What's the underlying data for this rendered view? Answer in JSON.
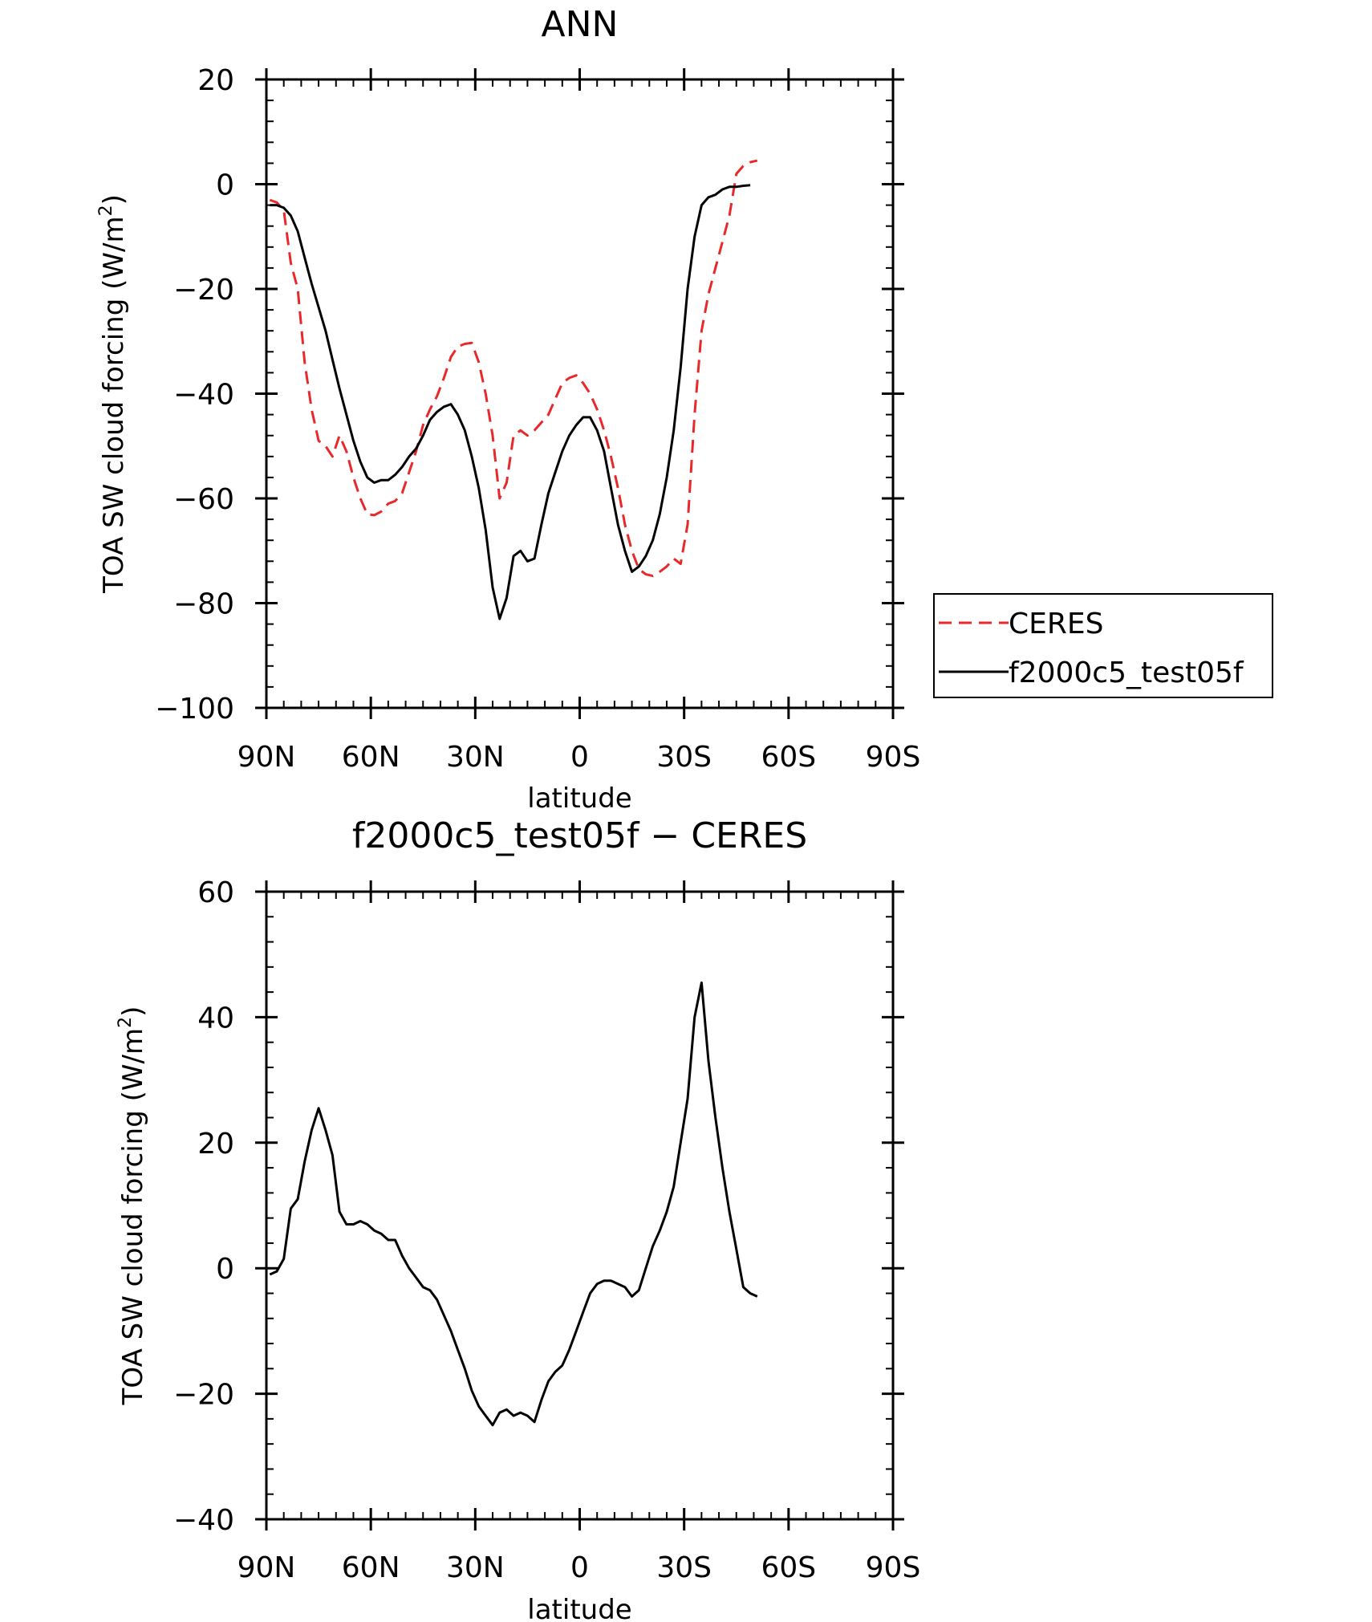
{
  "chart_data": [
    {
      "type": "line",
      "title": "ANN",
      "xlabel": "latitude",
      "ylabel": "TOA SW cloud forcing (W/m",
      "ylabel_sup": "2",
      "ylabel_close": ")",
      "xlim": [
        90,
        -90
      ],
      "ylim": [
        -100,
        20
      ],
      "x_ticks": [
        90,
        60,
        30,
        0,
        -30,
        -60,
        -90
      ],
      "x_tick_labels": [
        "90N",
        "60N",
        "30N",
        "0",
        "30S",
        "60S",
        "90S"
      ],
      "y_ticks": [
        20,
        0,
        -20,
        -40,
        -60,
        -80,
        -100
      ],
      "y_tick_labels": [
        "20",
        "0",
        "−20",
        "−40",
        "−60",
        "−80",
        "−100"
      ],
      "legend": {
        "placement": "right",
        "entries": [
          "CERES",
          "f2000c5_test05f"
        ]
      },
      "series": [
        {
          "name": "CERES",
          "color": "#e8282a",
          "dash": "dashed",
          "points": [
            [
              89,
              -3
            ],
            [
              87,
              -3.5
            ],
            [
              85,
              -5
            ],
            [
              83,
              -15
            ],
            [
              81,
              -20
            ],
            [
              79,
              -34
            ],
            [
              77,
              -43
            ],
            [
              75,
              -49
            ],
            [
              73,
              -50
            ],
            [
              71,
              -52
            ],
            [
              69,
              -48
            ],
            [
              67,
              -51
            ],
            [
              65,
              -56
            ],
            [
              63,
              -60
            ],
            [
              61,
              -63
            ],
            [
              59,
              -63.2
            ],
            [
              57,
              -62.5
            ],
            [
              55,
              -61
            ],
            [
              53,
              -60.5
            ],
            [
              51,
              -59
            ],
            [
              49,
              -55
            ],
            [
              47,
              -51
            ],
            [
              45,
              -46
            ],
            [
              43,
              -43
            ],
            [
              41,
              -40.5
            ],
            [
              39,
              -37
            ],
            [
              37,
              -33
            ],
            [
              35,
              -31
            ],
            [
              33,
              -30.5
            ],
            [
              31,
              -30.3
            ],
            [
              29,
              -34
            ],
            [
              27,
              -40
            ],
            [
              25,
              -48
            ],
            [
              23,
              -60
            ],
            [
              21,
              -57
            ],
            [
              19,
              -48
            ],
            [
              17,
              -47
            ],
            [
              15,
              -48
            ],
            [
              13,
              -47
            ],
            [
              11,
              -45.5
            ],
            [
              9,
              -44
            ],
            [
              7,
              -41
            ],
            [
              5,
              -38
            ],
            [
              3,
              -37
            ],
            [
              1,
              -36.5
            ],
            [
              -1,
              -38
            ],
            [
              -3,
              -40
            ],
            [
              -5,
              -43
            ],
            [
              -7,
              -47
            ],
            [
              -9,
              -52
            ],
            [
              -11,
              -58
            ],
            [
              -13,
              -65
            ],
            [
              -15,
              -70
            ],
            [
              -17,
              -73.5
            ],
            [
              -19,
              -74.5
            ],
            [
              -21,
              -74.8
            ],
            [
              -23,
              -74
            ],
            [
              -25,
              -73
            ],
            [
              -27,
              -71.5
            ],
            [
              -29,
              -72.5
            ],
            [
              -31,
              -65
            ],
            [
              -33,
              -44
            ],
            [
              -35,
              -28
            ],
            [
              -37,
              -21
            ],
            [
              -39,
              -16
            ],
            [
              -41,
              -11
            ],
            [
              -43,
              -6
            ],
            [
              -45,
              2
            ],
            [
              -47,
              3.5
            ],
            [
              -49,
              4.2
            ],
            [
              -51,
              4.5
            ]
          ]
        },
        {
          "name": "f2000c5_test05f",
          "color": "#000000",
          "dash": "solid",
          "points": [
            [
              89,
              -4
            ],
            [
              87,
              -4
            ],
            [
              85,
              -4.5
            ],
            [
              83,
              -6
            ],
            [
              81,
              -9
            ],
            [
              79,
              -14
            ],
            [
              77,
              -19
            ],
            [
              75,
              -23.5
            ],
            [
              73,
              -28
            ],
            [
              71,
              -33.5
            ],
            [
              69,
              -39
            ],
            [
              67,
              -44
            ],
            [
              65,
              -49
            ],
            [
              63,
              -53
            ],
            [
              61,
              -56
            ],
            [
              59,
              -57
            ],
            [
              57,
              -56.5
            ],
            [
              55,
              -56.5
            ],
            [
              53,
              -55.5
            ],
            [
              51,
              -54
            ],
            [
              49,
              -52
            ],
            [
              47,
              -50.5
            ],
            [
              45,
              -48
            ],
            [
              43,
              -45
            ],
            [
              41,
              -43.5
            ],
            [
              39,
              -42.5
            ],
            [
              37,
              -42
            ],
            [
              35,
              -44
            ],
            [
              33,
              -47
            ],
            [
              31,
              -52
            ],
            [
              29,
              -58
            ],
            [
              27,
              -66
            ],
            [
              25,
              -77
            ],
            [
              23,
              -83
            ],
            [
              21,
              -79
            ],
            [
              19,
              -71
            ],
            [
              17,
              -70
            ],
            [
              15,
              -72
            ],
            [
              13,
              -71.5
            ],
            [
              11,
              -65
            ],
            [
              9,
              -59
            ],
            [
              7,
              -55
            ],
            [
              5,
              -51
            ],
            [
              3,
              -48
            ],
            [
              1,
              -46
            ],
            [
              -1,
              -44.5
            ],
            [
              -3,
              -44.5
            ],
            [
              -5,
              -47
            ],
            [
              -7,
              -51
            ],
            [
              -9,
              -58
            ],
            [
              -11,
              -65
            ],
            [
              -13,
              -70
            ],
            [
              -15,
              -74
            ],
            [
              -17,
              -73
            ],
            [
              -19,
              -71
            ],
            [
              -21,
              -68
            ],
            [
              -23,
              -63
            ],
            [
              -25,
              -56
            ],
            [
              -27,
              -47
            ],
            [
              -29,
              -35
            ],
            [
              -31,
              -20
            ],
            [
              -33,
              -10
            ],
            [
              -35,
              -4
            ],
            [
              -37,
              -2.5
            ],
            [
              -39,
              -2
            ],
            [
              -41,
              -1
            ],
            [
              -43,
              -0.5
            ],
            [
              -45,
              -0.5
            ],
            [
              -47,
              -0.3
            ],
            [
              -49,
              -0.2
            ]
          ]
        }
      ]
    },
    {
      "type": "line",
      "title": "f2000c5_test05f − CERES",
      "xlabel": "latitude",
      "ylabel": "TOA SW cloud forcing (W/m",
      "ylabel_sup": "2",
      "ylabel_close": ")",
      "xlim": [
        90,
        -90
      ],
      "ylim": [
        -40,
        60
      ],
      "x_ticks": [
        90,
        60,
        30,
        0,
        -30,
        -60,
        -90
      ],
      "x_tick_labels": [
        "90N",
        "60N",
        "30N",
        "0",
        "30S",
        "60S",
        "90S"
      ],
      "y_ticks": [
        60,
        40,
        20,
        0,
        -20,
        -40
      ],
      "y_tick_labels": [
        "60",
        "40",
        "20",
        "0",
        "−20",
        "−40"
      ],
      "series": [
        {
          "name": "f2000c5_test05f − CERES",
          "color": "#000000",
          "dash": "solid",
          "points": [
            [
              89,
              -1
            ],
            [
              87,
              -0.5
            ],
            [
              85,
              1.5
            ],
            [
              83,
              9.5
            ],
            [
              81,
              11
            ],
            [
              79,
              17
            ],
            [
              77,
              22
            ],
            [
              75,
              25.5
            ],
            [
              73,
              22
            ],
            [
              71,
              18
            ],
            [
              69,
              9
            ],
            [
              67,
              7
            ],
            [
              65,
              7
            ],
            [
              63,
              7.5
            ],
            [
              61,
              7
            ],
            [
              59,
              6
            ],
            [
              57,
              5.5
            ],
            [
              55,
              4.5
            ],
            [
              53,
              4.5
            ],
            [
              51,
              2
            ],
            [
              49,
              0
            ],
            [
              47,
              -1.5
            ],
            [
              45,
              -3
            ],
            [
              43,
              -3.5
            ],
            [
              41,
              -5
            ],
            [
              39,
              -7.5
            ],
            [
              37,
              -10
            ],
            [
              35,
              -13
            ],
            [
              33,
              -16
            ],
            [
              31,
              -19.5
            ],
            [
              29,
              -22
            ],
            [
              27,
              -23.5
            ],
            [
              25,
              -25
            ],
            [
              23,
              -23
            ],
            [
              21,
              -22.5
            ],
            [
              19,
              -23.5
            ],
            [
              17,
              -23
            ],
            [
              15,
              -23.5
            ],
            [
              13,
              -24.5
            ],
            [
              11,
              -21
            ],
            [
              9,
              -18
            ],
            [
              7,
              -16.5
            ],
            [
              5,
              -15.5
            ],
            [
              3,
              -13
            ],
            [
              1,
              -10
            ],
            [
              -1,
              -7
            ],
            [
              -3,
              -4
            ],
            [
              -5,
              -2.5
            ],
            [
              -7,
              -2
            ],
            [
              -9,
              -2
            ],
            [
              -11,
              -2.5
            ],
            [
              -13,
              -3
            ],
            [
              -15,
              -4.5
            ],
            [
              -17,
              -3.5
            ],
            [
              -19,
              0
            ],
            [
              -21,
              3.5
            ],
            [
              -23,
              6
            ],
            [
              -25,
              9
            ],
            [
              -27,
              13
            ],
            [
              -29,
              20
            ],
            [
              -31,
              27
            ],
            [
              -33,
              40
            ],
            [
              -35,
              45.5
            ],
            [
              -37,
              33
            ],
            [
              -39,
              24
            ],
            [
              -41,
              16
            ],
            [
              -43,
              9
            ],
            [
              -45,
              3
            ],
            [
              -47,
              -3
            ],
            [
              -49,
              -4
            ],
            [
              -51,
              -4.5
            ]
          ]
        }
      ]
    }
  ]
}
